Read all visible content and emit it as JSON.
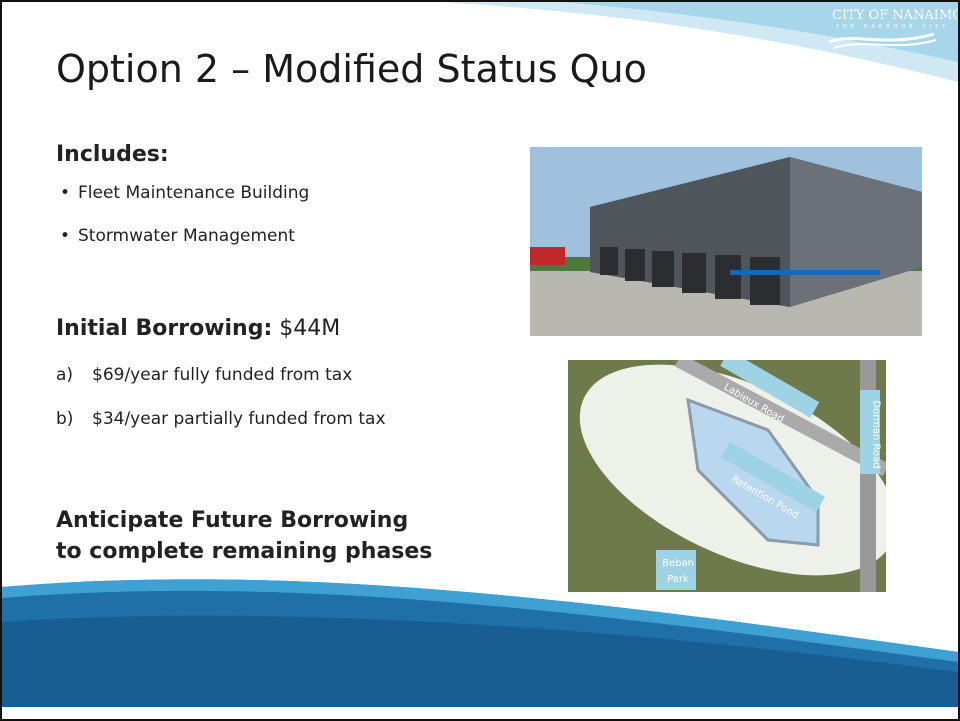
{
  "logo": {
    "name": "CITY OF NANAIMO",
    "tagline": "THE HARBOUR CITY"
  },
  "title": "Option 2 – Modified Status Quo",
  "includes": {
    "heading": "Includes:",
    "items": [
      "Fleet Maintenance Building",
      "Stormwater Management"
    ]
  },
  "borrowing": {
    "label": "Initial Borrowing:",
    "amount": "$44M",
    "options": [
      {
        "marker": "a)",
        "text": "$69/year fully funded from tax"
      },
      {
        "marker": "b)",
        "text": "$34/year partially funded from tax"
      }
    ]
  },
  "future": [
    "Anticipate Future Borrowing",
    "to complete remaining phases"
  ],
  "map_labels": {
    "road1": "Labieux Road",
    "road2": "Dorman Road",
    "pond": "Retention Pond",
    "park": "Beban Park"
  }
}
